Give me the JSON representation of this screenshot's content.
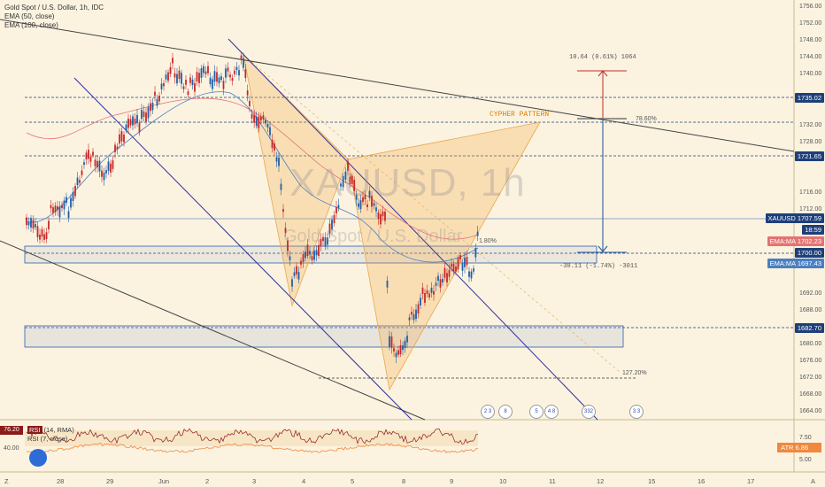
{
  "legend": {
    "symbol": "Gold Spot / U.S. Dollar, 1h, IDC",
    "ema1": "EMA (50, close)",
    "ema2": "EMA (100, close)"
  },
  "watermark": {
    "ticker": "XAUUSD, 1h",
    "name": "Gold Spot / U.S. Dollar"
  },
  "price_axis": [
    "1756.00",
    "1752.00",
    "1748.00",
    "1744.00",
    "1740.00",
    "1732.00",
    "1728.00",
    "1724.00",
    "1716.00",
    "1712.00",
    "1704.00",
    "1692.00",
    "1688.00",
    "1684.00",
    "1680.00",
    "1676.00",
    "1672.00",
    "1668.00",
    "1664.00"
  ],
  "price_tags": [
    {
      "label": "1735.02",
      "color": "#1e3f7a"
    },
    {
      "label": "1721.65",
      "color": "#1e3f7a"
    },
    {
      "label": "XAUUSD",
      "value": "1707.59",
      "color": "#1e3f7a"
    },
    {
      "label": "18:59",
      "color": "#1e3f7a"
    },
    {
      "label": "EMA:MA",
      "value": "1702.23",
      "color": "#e57373"
    },
    {
      "label": "1700.00",
      "color": "#1e3f7a"
    },
    {
      "label": "EMA:MA",
      "value": "1697.43",
      "color": "#4a7fc1"
    },
    {
      "label": "1682.70",
      "color": "#1e3f7a"
    }
  ],
  "time_axis": [
    "28",
    "29",
    "Jun",
    "2",
    "3",
    "4",
    "5",
    "8",
    "9",
    "10",
    "11",
    "12",
    "15",
    "16",
    "17"
  ],
  "annotations": {
    "pattern": "CYPHER PATTERN",
    "fib_786": "78.60%",
    "fib_1272": "127.20%",
    "fib_180": "1.80%",
    "measure_up": "10.64 (0.61%) 1064",
    "measure_down": "-30.11 (-1.74%) -3011"
  },
  "events": [
    "2 3",
    "8",
    "5",
    "4 8",
    "332 2",
    "3 3"
  ],
  "rsi": {
    "value": "76.20",
    "label1": "RSI",
    "label1_params": "(14, RMA)",
    "label2": "RSI (7, close)",
    "axis": [
      "40.00"
    ]
  },
  "atr": {
    "label": "ATR",
    "value": "6.86",
    "axis": [
      "7.50",
      "5.00"
    ]
  },
  "corner_left": "Z",
  "corner_right": "A"
}
